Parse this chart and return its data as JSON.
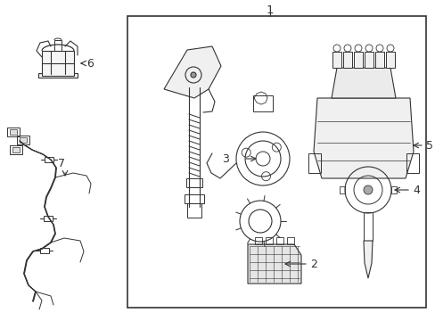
{
  "bg_color": "#ffffff",
  "line_color": "#333333",
  "fig_width": 4.89,
  "fig_height": 3.6,
  "dpi": 100,
  "label_1": "1",
  "label_2": "2",
  "label_3": "3",
  "label_4": "4",
  "label_5": "5",
  "label_6": "6",
  "label_7": "7",
  "font_size_labels": 9
}
